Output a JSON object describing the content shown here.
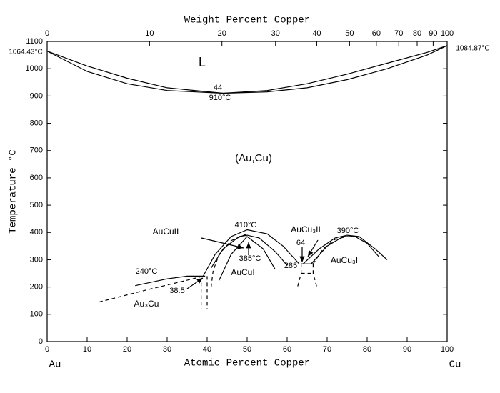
{
  "chart_data": {
    "type": "line",
    "title": "Weight Percent Copper",
    "xlabel": "Atomic Percent Copper",
    "ylabel": "Temperature °C",
    "left_end": "Au",
    "right_end": "Cu",
    "xlim": [
      0,
      100
    ],
    "ylim": [
      0,
      1100
    ],
    "xticks": [
      0,
      10,
      20,
      30,
      40,
      50,
      60,
      70,
      80,
      90,
      100
    ],
    "yticks": [
      0,
      100,
      200,
      300,
      400,
      500,
      600,
      700,
      800,
      900,
      1000,
      1100
    ],
    "x2ticks": [
      {
        "value": 0,
        "label": "0"
      },
      {
        "value": 25.6,
        "label": "10"
      },
      {
        "value": 43.7,
        "label": "20"
      },
      {
        "value": 57.1,
        "label": "30"
      },
      {
        "value": 67.4,
        "label": "40"
      },
      {
        "value": 75.6,
        "label": "50"
      },
      {
        "value": 82.3,
        "label": "60"
      },
      {
        "value": 87.9,
        "label": "70"
      },
      {
        "value": 92.5,
        "label": "80"
      },
      {
        "value": 96.5,
        "label": "90"
      },
      {
        "value": 100,
        "label": "100"
      }
    ],
    "color": "#000000",
    "curves": [
      {
        "style": "solid",
        "x": [
          0,
          10,
          20,
          30,
          44,
          55,
          65,
          75,
          85,
          95,
          100
        ],
        "y": [
          1064.43,
          1010,
          965,
          930,
          910,
          920,
          945,
          980,
          1020,
          1060,
          1084.87
        ]
      },
      {
        "style": "solid",
        "x": [
          0,
          10,
          20,
          30,
          44,
          55,
          65,
          75,
          85,
          95,
          100
        ],
        "y": [
          1064.43,
          990,
          945,
          920,
          910,
          915,
          930,
          960,
          1000,
          1050,
          1084.87
        ]
      },
      {
        "style": "solid",
        "x": [
          39,
          42,
          46,
          50,
          55,
          59,
          63
        ],
        "y": [
          240,
          320,
          385,
          410,
          395,
          350,
          285
        ]
      },
      {
        "style": "solid",
        "x": [
          41,
          44,
          48,
          50,
          53,
          57,
          60
        ],
        "y": [
          270,
          340,
          385,
          390,
          380,
          330,
          280
        ]
      },
      {
        "style": "solid",
        "x": [
          43,
          46,
          50,
          54,
          57
        ],
        "y": [
          225,
          320,
          385,
          340,
          265
        ]
      },
      {
        "style": "solid",
        "x": [
          22,
          30,
          35,
          39.5
        ],
        "y": [
          205,
          230,
          240,
          240
        ]
      },
      {
        "style": "dashed",
        "x": [
          13,
          25,
          35,
          39
        ],
        "y": [
          145,
          190,
          225,
          240
        ]
      },
      {
        "style": "dashed",
        "x": [
          38.5,
          38.5
        ],
        "y": [
          240,
          120
        ]
      },
      {
        "style": "dashed",
        "x": [
          40,
          40
        ],
        "y": [
          240,
          120
        ]
      },
      {
        "style": "dashed",
        "x": [
          41,
          41.5,
          43,
          46,
          50
        ],
        "y": [
          200,
          260,
          320,
          370,
          395
        ]
      },
      {
        "style": "solid",
        "x": [
          63.5,
          66.5
        ],
        "y": [
          285,
          285
        ]
      },
      {
        "style": "dashed",
        "x": [
          63.5,
          63.5,
          62.5
        ],
        "y": [
          285,
          250,
          195
        ]
      },
      {
        "style": "dashed",
        "x": [
          66.5,
          66.5,
          67.5
        ],
        "y": [
          285,
          250,
          195
        ]
      },
      {
        "style": "dashed",
        "x": [
          63.5,
          66.5
        ],
        "y": [
          250,
          250
        ]
      },
      {
        "style": "solid",
        "x": [
          64,
          68,
          72,
          75,
          78,
          82,
          85
        ],
        "y": [
          285,
          340,
          380,
          390,
          385,
          340,
          300
        ]
      },
      {
        "style": "solid",
        "x": [
          66,
          70,
          74,
          77,
          80,
          83
        ],
        "y": [
          285,
          350,
          385,
          385,
          360,
          310
        ]
      },
      {
        "style": "dashed",
        "x": [
          66.5,
          69,
          72,
          75
        ],
        "y": [
          285,
          340,
          375,
          385
        ]
      }
    ],
    "annotations": [
      "L",
      "44",
      "910°C",
      "(Au,Cu)",
      "AuCuII",
      "410°C",
      "385°C",
      "AuCuI",
      "240°C",
      "38.5",
      "Au₃Cu",
      "AuCu₃II",
      "390°C",
      "64",
      "285",
      "AuCu₃I",
      "1064.43°C",
      "1084.87°C"
    ]
  }
}
